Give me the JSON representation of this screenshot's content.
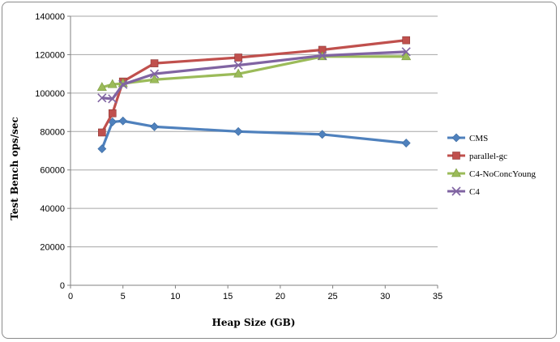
{
  "chart_data": {
    "type": "line",
    "xlabel": "Heap Size (GB)",
    "ylabel": "Test Bench ops/sec",
    "xlim": [
      0,
      35
    ],
    "ylim": [
      0,
      140000
    ],
    "x_ticks": [
      "0",
      "5",
      "10",
      "15",
      "20",
      "25",
      "30",
      "35"
    ],
    "y_ticks": [
      "0",
      "20000",
      "40000",
      "60000",
      "80000",
      "100000",
      "120000",
      "140000"
    ],
    "grid": "horizontal",
    "legend_position": "right",
    "series": [
      {
        "name": "CMS",
        "color": "#4f81bd",
        "marker": "diamond",
        "points": [
          [
            3,
            71000
          ],
          [
            4,
            85000
          ],
          [
            5,
            85500
          ],
          [
            8,
            82500
          ],
          [
            16,
            80000
          ],
          [
            24,
            78500
          ],
          [
            32,
            74000
          ]
        ]
      },
      {
        "name": "parallel-gc",
        "color": "#c0504d",
        "marker": "square",
        "points": [
          [
            3,
            79500
          ],
          [
            4,
            89500
          ],
          [
            5,
            106000
          ],
          [
            8,
            115500
          ],
          [
            16,
            118500
          ],
          [
            24,
            122500
          ],
          [
            32,
            127500
          ]
        ]
      },
      {
        "name": "C4-NoConcYoung",
        "color": "#9bbb59",
        "marker": "triangle",
        "points": [
          [
            3,
            103000
          ],
          [
            4,
            104500
          ],
          [
            5,
            105000
          ],
          [
            8,
            107000
          ],
          [
            16,
            110000
          ],
          [
            24,
            119000
          ],
          [
            32,
            119000
          ]
        ]
      },
      {
        "name": "C4",
        "color": "#8064a2",
        "marker": "x",
        "points": [
          [
            3,
            97500
          ],
          [
            4,
            97000
          ],
          [
            5,
            104500
          ],
          [
            8,
            110000
          ],
          [
            16,
            114500
          ],
          [
            24,
            119500
          ],
          [
            32,
            121500
          ]
        ]
      }
    ]
  }
}
